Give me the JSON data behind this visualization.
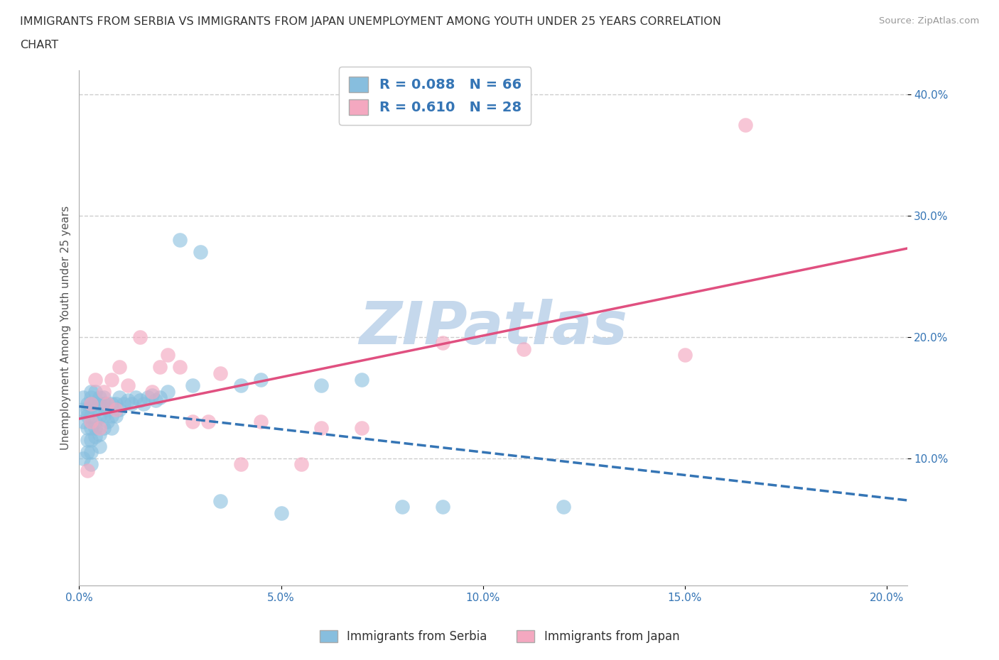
{
  "title_line1": "IMMIGRANTS FROM SERBIA VS IMMIGRANTS FROM JAPAN UNEMPLOYMENT AMONG YOUTH UNDER 25 YEARS CORRELATION",
  "title_line2": "CHART",
  "source": "Source: ZipAtlas.com",
  "ylabel": "Unemployment Among Youth under 25 years",
  "legend_bottom": [
    "Immigrants from Serbia",
    "Immigrants from Japan"
  ],
  "serbia_color": "#87bede",
  "japan_color": "#f4a8c0",
  "serbia_line_color": "#3575b5",
  "japan_line_color": "#e05080",
  "serbia_R": 0.088,
  "serbia_N": 66,
  "japan_R": 0.61,
  "japan_N": 28,
  "xlim": [
    0.0,
    0.205
  ],
  "ylim": [
    -0.005,
    0.42
  ],
  "xticks": [
    0.0,
    0.05,
    0.1,
    0.15,
    0.2
  ],
  "xtick_labels": [
    "0.0%",
    "5.0%",
    "10.0%",
    "15.0%",
    "20.0%"
  ],
  "yticks": [
    0.1,
    0.2,
    0.3,
    0.4
  ],
  "ytick_labels": [
    "10.0%",
    "20.0%",
    "30.0%",
    "40.0%"
  ],
  "serbia_x": [
    0.001,
    0.001,
    0.001,
    0.001,
    0.002,
    0.002,
    0.002,
    0.002,
    0.002,
    0.002,
    0.003,
    0.003,
    0.003,
    0.003,
    0.003,
    0.003,
    0.003,
    0.003,
    0.004,
    0.004,
    0.004,
    0.004,
    0.004,
    0.004,
    0.005,
    0.005,
    0.005,
    0.005,
    0.005,
    0.006,
    0.006,
    0.006,
    0.006,
    0.007,
    0.007,
    0.007,
    0.008,
    0.008,
    0.008,
    0.009,
    0.009,
    0.01,
    0.01,
    0.011,
    0.012,
    0.013,
    0.014,
    0.015,
    0.016,
    0.017,
    0.018,
    0.019,
    0.02,
    0.022,
    0.025,
    0.028,
    0.03,
    0.035,
    0.04,
    0.045,
    0.05,
    0.06,
    0.07,
    0.08,
    0.09,
    0.12
  ],
  "serbia_y": [
    0.14,
    0.13,
    0.15,
    0.1,
    0.14,
    0.145,
    0.135,
    0.125,
    0.115,
    0.105,
    0.155,
    0.15,
    0.145,
    0.135,
    0.125,
    0.115,
    0.105,
    0.095,
    0.155,
    0.145,
    0.14,
    0.13,
    0.125,
    0.118,
    0.15,
    0.145,
    0.135,
    0.12,
    0.11,
    0.15,
    0.145,
    0.135,
    0.125,
    0.145,
    0.14,
    0.13,
    0.145,
    0.135,
    0.125,
    0.145,
    0.135,
    0.15,
    0.14,
    0.145,
    0.148,
    0.145,
    0.15,
    0.148,
    0.145,
    0.15,
    0.152,
    0.148,
    0.15,
    0.155,
    0.28,
    0.16,
    0.27,
    0.065,
    0.16,
    0.165,
    0.055,
    0.16,
    0.165,
    0.06,
    0.06,
    0.06
  ],
  "japan_x": [
    0.002,
    0.003,
    0.003,
    0.004,
    0.005,
    0.006,
    0.007,
    0.008,
    0.009,
    0.01,
    0.012,
    0.015,
    0.018,
    0.02,
    0.022,
    0.025,
    0.028,
    0.032,
    0.035,
    0.04,
    0.045,
    0.055,
    0.06,
    0.07,
    0.09,
    0.11,
    0.15,
    0.165
  ],
  "japan_y": [
    0.09,
    0.145,
    0.13,
    0.165,
    0.125,
    0.155,
    0.145,
    0.165,
    0.14,
    0.175,
    0.16,
    0.2,
    0.155,
    0.175,
    0.185,
    0.175,
    0.13,
    0.13,
    0.17,
    0.095,
    0.13,
    0.095,
    0.125,
    0.125,
    0.195,
    0.19,
    0.185,
    0.375
  ],
  "watermark": "ZIPatlas",
  "watermark_color": "#c5d8ec",
  "grid_color": "#c8c8c8",
  "background_color": "#ffffff",
  "title_color": "#333333",
  "axis_label_color": "#555555",
  "tick_color": "#3575b5",
  "legend_color": "#3575b5",
  "legend_fontsize": 14,
  "title_fontsize": 11.5,
  "ylabel_fontsize": 11
}
